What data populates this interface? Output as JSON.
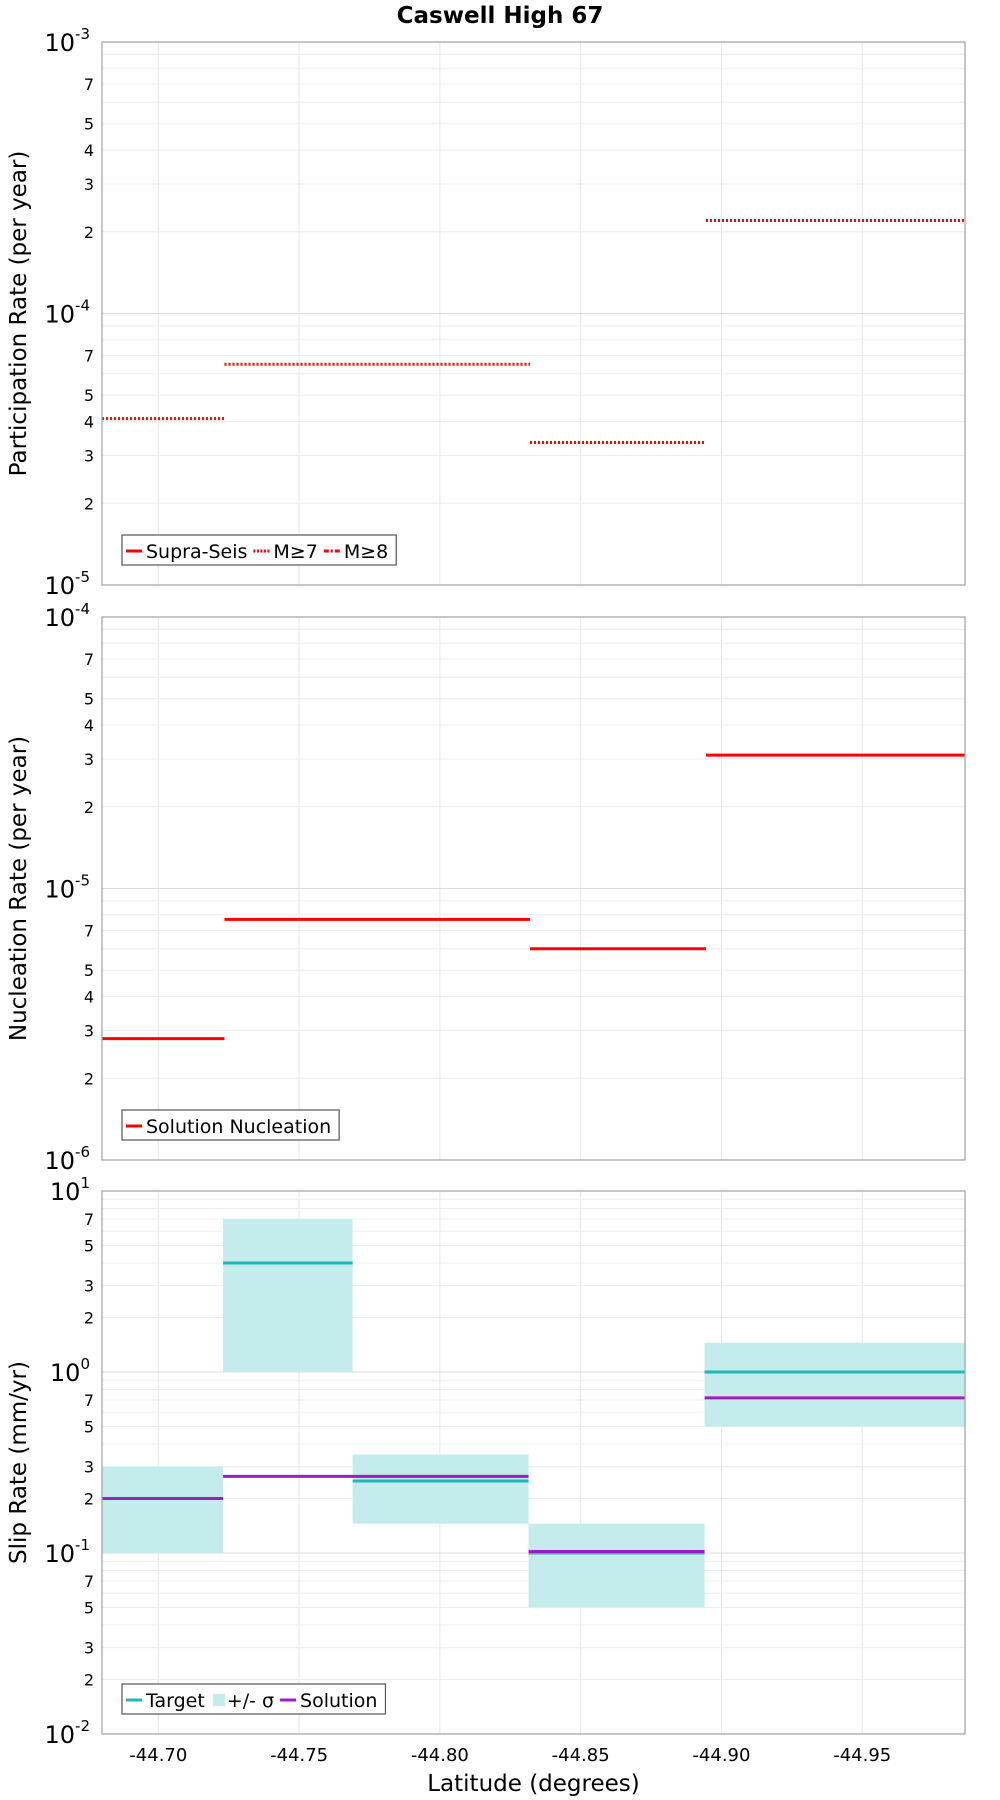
{
  "figure": {
    "title": "Caswell High 67"
  },
  "chart_data": [
    {
      "type": "line",
      "panel": "participation",
      "ylabel": "Participation Rate (per year)",
      "yscale": "log",
      "ylim": [
        1e-05,
        0.001
      ],
      "decade_ticks": [
        {
          "base": "10",
          "exp": "-5"
        },
        {
          "base": "10",
          "exp": "-4"
        },
        {
          "base": "10",
          "exp": "-3"
        }
      ],
      "minor_tick_labels": [
        "2",
        "3",
        "4",
        "5",
        "7"
      ],
      "xlim": [
        -44.68,
        -44.9865
      ],
      "series": [
        {
          "name": "Supra-Seis",
          "color": "#ff0000",
          "style": "solid",
          "segments": []
        },
        {
          "name": "M≥7",
          "color": "#ff0000",
          "style": "dotted",
          "segments": [
            {
              "x0": -44.68,
              "x1": -44.7235,
              "y": 4.1e-05
            },
            {
              "x0": -44.7235,
              "x1": -44.832,
              "y": 6.5e-05
            },
            {
              "x0": -44.832,
              "x1": -44.8945,
              "y": 3.35e-05
            },
            {
              "x0": -44.8945,
              "x1": -44.9865,
              "y": 0.00022
            }
          ]
        },
        {
          "name": "M≥8",
          "color": "#ff0000",
          "style": "dashdot",
          "segments": []
        }
      ],
      "legend": [
        {
          "label": "Supra-Seis",
          "style": "solid",
          "color": "#ff0000"
        },
        {
          "label": "M≥7",
          "style": "dotted",
          "color": "#ff0000"
        },
        {
          "label": "M≥8",
          "style": "dashdot",
          "color": "#ff0000"
        }
      ]
    },
    {
      "type": "line",
      "panel": "nucleation",
      "ylabel": "Nucleation Rate (per year)",
      "yscale": "log",
      "ylim": [
        1e-06,
        0.0001
      ],
      "decade_ticks": [
        {
          "base": "10",
          "exp": "-6"
        },
        {
          "base": "10",
          "exp": "-5"
        },
        {
          "base": "10",
          "exp": "-4"
        }
      ],
      "minor_tick_labels": [
        "2",
        "3",
        "4",
        "5",
        "7"
      ],
      "xlim": [
        -44.68,
        -44.9865
      ],
      "series": [
        {
          "name": "Solution Nucleation",
          "color": "#ff0000",
          "style": "solid",
          "segments": [
            {
              "x0": -44.68,
              "x1": -44.7235,
              "y": 2.8e-06
            },
            {
              "x0": -44.7235,
              "x1": -44.832,
              "y": 7.7e-06
            },
            {
              "x0": -44.832,
              "x1": -44.8945,
              "y": 6e-06
            },
            {
              "x0": -44.8945,
              "x1": -44.9865,
              "y": 3.1e-05
            }
          ]
        }
      ],
      "legend": [
        {
          "label": "Solution Nucleation",
          "style": "solid",
          "color": "#ff0000"
        }
      ]
    },
    {
      "type": "line",
      "panel": "slip",
      "ylabel": "Slip Rate (mm/yr)",
      "xlabel": "Latitude (degrees)",
      "yscale": "log",
      "ylim": [
        0.01,
        10
      ],
      "decade_ticks": [
        {
          "base": "10",
          "exp": "-2"
        },
        {
          "base": "10",
          "exp": "-1"
        },
        {
          "base": "10",
          "exp": "0"
        },
        {
          "base": "10",
          "exp": "1"
        }
      ],
      "minor_tick_labels": [
        "2",
        "3",
        "5",
        "7"
      ],
      "xlim": [
        -44.68,
        -44.9865
      ],
      "x_ticks": [
        -44.7,
        -44.75,
        -44.8,
        -44.85,
        -44.9,
        -44.95
      ],
      "x_tick_labels": [
        "-44.70",
        "-44.75",
        "-44.80",
        "-44.85",
        "-44.90",
        "-44.95"
      ],
      "bands": [
        {
          "x0": -44.68,
          "x1": -44.723,
          "y0": 0.1,
          "y1": 0.3
        },
        {
          "x0": -44.723,
          "x1": -44.769,
          "y0": 1.0,
          "y1": 7.0
        },
        {
          "x0": -44.769,
          "x1": -44.8315,
          "y0": 0.145,
          "y1": 0.35
        },
        {
          "x0": -44.8315,
          "x1": -44.894,
          "y0": 0.05,
          "y1": 0.145
        },
        {
          "x0": -44.894,
          "x1": -44.9865,
          "y0": 0.5,
          "y1": 1.45
        }
      ],
      "series": [
        {
          "name": "Target",
          "color": "#1fb7b7",
          "style": "solid",
          "segments": [
            {
              "x0": -44.68,
              "x1": -44.723,
              "y": 0.2
            },
            {
              "x0": -44.723,
              "x1": -44.769,
              "y": 4.0
            },
            {
              "x0": -44.769,
              "x1": -44.8315,
              "y": 0.25
            },
            {
              "x0": -44.8315,
              "x1": -44.894,
              "y": 0.1
            },
            {
              "x0": -44.894,
              "x1": -44.9865,
              "y": 1.0
            }
          ]
        },
        {
          "name": "Solution",
          "color": "#9b1fbf",
          "style": "solid",
          "segments": [
            {
              "x0": -44.68,
              "x1": -44.723,
              "y": 0.2
            },
            {
              "x0": -44.723,
              "x1": -44.8315,
              "y": 0.265
            },
            {
              "x0": -44.8315,
              "x1": -44.894,
              "y": 0.102
            },
            {
              "x0": -44.894,
              "x1": -44.9865,
              "y": 0.72
            }
          ]
        }
      ],
      "legend": [
        {
          "label": "Target",
          "style": "solid",
          "color": "#1fb7b7"
        },
        {
          "label": "+/- σ",
          "style": "band",
          "color": "#c4ecec"
        },
        {
          "label": "Solution",
          "style": "solid",
          "color": "#9b1fbf"
        }
      ]
    }
  ]
}
